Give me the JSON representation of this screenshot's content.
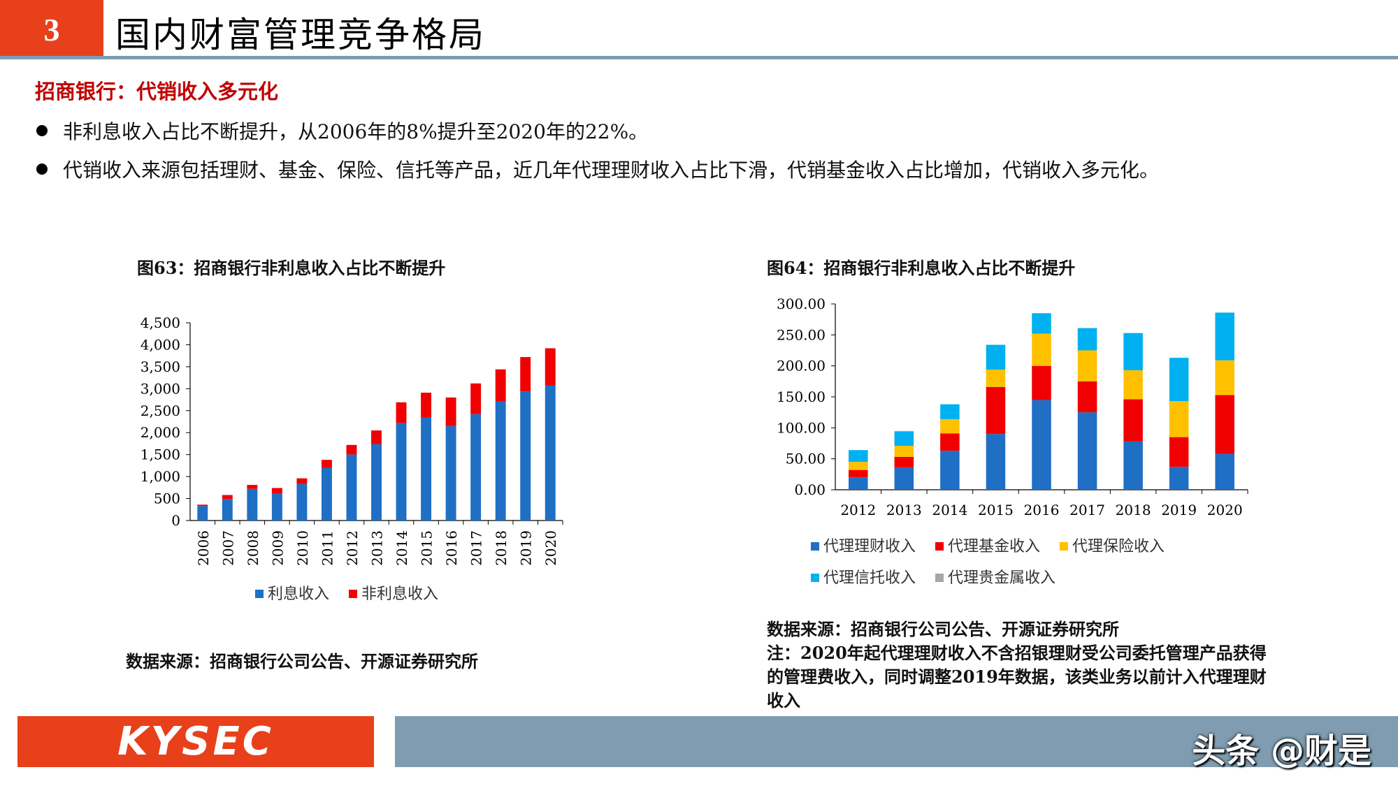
{
  "header": {
    "section_number": "3",
    "title": "国内财富管理竞争格局"
  },
  "subtitle": "招商银行：代销收入多元化",
  "bullets": [
    "非利息收入占比不断提升，从2006年的8%提升至2020年的22%。",
    "代销收入来源包括理财、基金、保险、信托等产品，近几年代理理财收入占比下滑，代销基金收入占比增加，代销收入多元化。"
  ],
  "figure63": {
    "title": "图63：招商银行非利息收入占比不断提升",
    "source": "数据来源：招商银行公司公告、开源证券研究所"
  },
  "figure64": {
    "title": "图64：招商银行非利息收入占比不断提升",
    "source_lines": [
      "数据来源：招商银行公司公告、开源证券研究所",
      "注：2020年起代理理财收入不含招银理财受公司委托管理产品获得",
      "的管理费收入，同时调整2019年数据，该类业务以前计入代理理财",
      "收入"
    ]
  },
  "footer": {
    "logo": "KYSEC",
    "watermark": "头条 @财是"
  },
  "colors": {
    "accent_orange": "#e8401b",
    "rule_blue": "#7f9cb0",
    "subtitle_red": "#c00000",
    "series_blue": "#1f6fc5",
    "series_red": "#f00000",
    "series_yellow": "#ffc000",
    "series_cyan": "#00b0f0",
    "series_gray": "#a6a6a6"
  },
  "chart_data": [
    {
      "type": "bar",
      "stacked": true,
      "categories": [
        "2006",
        "2007",
        "2008",
        "2009",
        "2010",
        "2011",
        "2012",
        "2013",
        "2014",
        "2015",
        "2016",
        "2017",
        "2018",
        "2019",
        "2020"
      ],
      "series": [
        {
          "name": "利息收入",
          "color": "#1f6fc5",
          "values": [
            330,
            490,
            720,
            610,
            830,
            1200,
            1500,
            1740,
            2220,
            2340,
            2150,
            2420,
            2710,
            2940,
            3070
          ]
        },
        {
          "name": "非利息收入",
          "color": "#f00000",
          "values": [
            30,
            90,
            90,
            130,
            130,
            180,
            220,
            310,
            470,
            570,
            650,
            700,
            730,
            780,
            850
          ]
        }
      ],
      "yticks": [
        "0",
        "500",
        "1,000",
        "1,500",
        "2,000",
        "2,500",
        "3,000",
        "3,500",
        "4,000",
        "4,500"
      ],
      "ylim": [
        0,
        4500
      ],
      "legend": "bottom"
    },
    {
      "type": "bar",
      "stacked": true,
      "categories": [
        "2012",
        "2013",
        "2014",
        "2015",
        "2016",
        "2017",
        "2018",
        "2019",
        "2020"
      ],
      "series": [
        {
          "name": "代理理财收入",
          "color": "#1f6fc5",
          "values": [
            20,
            36,
            63,
            90,
            145,
            125,
            78,
            37,
            58
          ]
        },
        {
          "name": "代理基金收入",
          "color": "#f00000",
          "values": [
            12,
            17,
            28,
            76,
            55,
            50,
            68,
            48,
            95
          ]
        },
        {
          "name": "代理保险收入",
          "color": "#ffc000",
          "values": [
            13,
            18,
            23,
            28,
            52,
            50,
            47,
            58,
            56
          ]
        },
        {
          "name": "代理信托收入",
          "color": "#00b0f0",
          "values": [
            19,
            23,
            24,
            40,
            33,
            36,
            60,
            70,
            77
          ]
        },
        {
          "name": "代理贵金属收入",
          "color": "#a6a6a6",
          "values": [
            0,
            1,
            0,
            0,
            0,
            0,
            0,
            0,
            0
          ]
        }
      ],
      "yticks": [
        "0.00",
        "50.00",
        "100.00",
        "150.00",
        "200.00",
        "250.00",
        "300.00"
      ],
      "ylim": [
        0,
        300
      ],
      "legend": "bottom"
    }
  ]
}
